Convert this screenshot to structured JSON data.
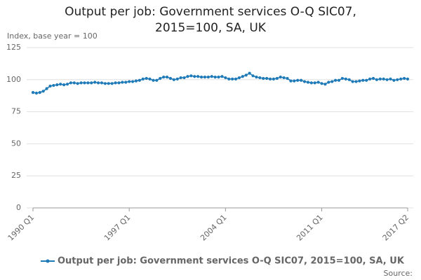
{
  "chart_data": {
    "type": "line",
    "title": "Output per job: Government services O-Q SIC07, 2015=100, SA, UK",
    "y_label": "Index, base year = 100",
    "source": "Source:",
    "categories": [
      "1990 Q1",
      null,
      null,
      null,
      null,
      null,
      null,
      null,
      null,
      null,
      null,
      null,
      null,
      null,
      null,
      null,
      null,
      null,
      null,
      null,
      null,
      null,
      null,
      null,
      null,
      null,
      null,
      null,
      "1997 Q1",
      null,
      null,
      null,
      null,
      null,
      null,
      null,
      null,
      null,
      null,
      null,
      null,
      null,
      null,
      null,
      null,
      null,
      null,
      null,
      null,
      null,
      null,
      null,
      null,
      null,
      null,
      null,
      "2004 Q1",
      null,
      null,
      null,
      null,
      null,
      null,
      null,
      null,
      null,
      null,
      null,
      null,
      null,
      null,
      null,
      null,
      null,
      null,
      null,
      null,
      null,
      null,
      null,
      null,
      null,
      null,
      null,
      "2011 Q1",
      null,
      null,
      null,
      null,
      null,
      null,
      null,
      null,
      null,
      null,
      null,
      null,
      null,
      null,
      null,
      null,
      null,
      null,
      null,
      null,
      null,
      null,
      null,
      null,
      "2017 Q2"
    ],
    "series": [
      {
        "name": "Output per job: Government services O-Q SIC07, 2015=100, SA, UK",
        "color": "#1f7ab8",
        "values": [
          90,
          89.5,
          90,
          91,
          93,
          95,
          95.5,
          96,
          96.5,
          96,
          96.5,
          97.5,
          97.5,
          97,
          97.5,
          97.5,
          97.5,
          97.5,
          98,
          97.5,
          97.5,
          97,
          97,
          97,
          97.5,
          97.5,
          98,
          98,
          98.5,
          98.5,
          99,
          99.5,
          100.5,
          101,
          100.5,
          99.5,
          99.5,
          101,
          102,
          102,
          101,
          100,
          100.5,
          101.5,
          101.5,
          102.5,
          103,
          102.5,
          102.5,
          102,
          102,
          102,
          102.5,
          102,
          102,
          102.5,
          101.5,
          100.5,
          100.5,
          100.5,
          101.5,
          102.5,
          103.5,
          105,
          103,
          102,
          101.5,
          101,
          101,
          100.5,
          100.5,
          101,
          102,
          101.5,
          101,
          99,
          99,
          99.5,
          99.5,
          98.5,
          98,
          97.5,
          97.5,
          98,
          97,
          96.5,
          98,
          98.5,
          99.5,
          99.5,
          101,
          100.5,
          100,
          98.5,
          98.5,
          99,
          99.5,
          99.5,
          100.5,
          101,
          100,
          100.5,
          100.5,
          100,
          100.5,
          99.5,
          100,
          100.5,
          101,
          100.5
        ]
      }
    ],
    "ylim": [
      0,
      125
    ],
    "yticks": [
      0,
      25,
      50,
      75,
      100,
      125
    ],
    "grid": true
  }
}
